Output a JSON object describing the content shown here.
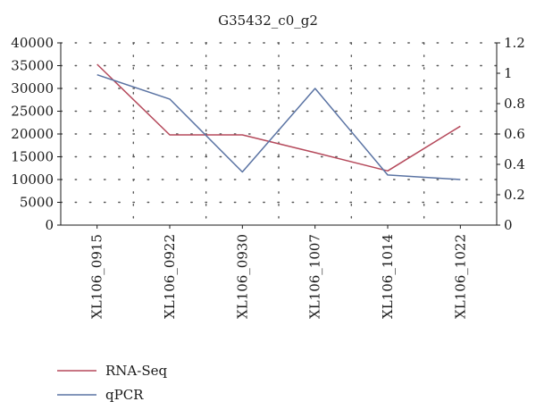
{
  "chart_data": {
    "type": "line",
    "title": "G35432_c0_g2",
    "categories": [
      "XL106_0915",
      "XL106_0922",
      "XL106_0930",
      "XL106_1007",
      "XL106_1014",
      "XL106_1022"
    ],
    "series": [
      {
        "name": "RNA-Seq",
        "axis": "left",
        "color": "#b5495b",
        "values": [
          35300,
          19800,
          19800,
          15900,
          11900,
          21700
        ]
      },
      {
        "name": "qPCR",
        "axis": "right",
        "color": "#5a73a3",
        "values": [
          0.99,
          0.83,
          0.35,
          0.9,
          0.33,
          0.3
        ]
      }
    ],
    "y_left": {
      "ylim": [
        0,
        40000
      ],
      "ticks": [
        "0",
        "5000",
        "10000",
        "15000",
        "20000",
        "25000",
        "30000",
        "35000",
        "40000"
      ]
    },
    "y_right": {
      "ylim": [
        0,
        1.2
      ],
      "ticks": [
        "0",
        "0.2",
        "0.4",
        "0.6",
        "0.8",
        "1",
        "1.2"
      ]
    },
    "grid": "dotted",
    "legend_position": "bottom-left"
  }
}
